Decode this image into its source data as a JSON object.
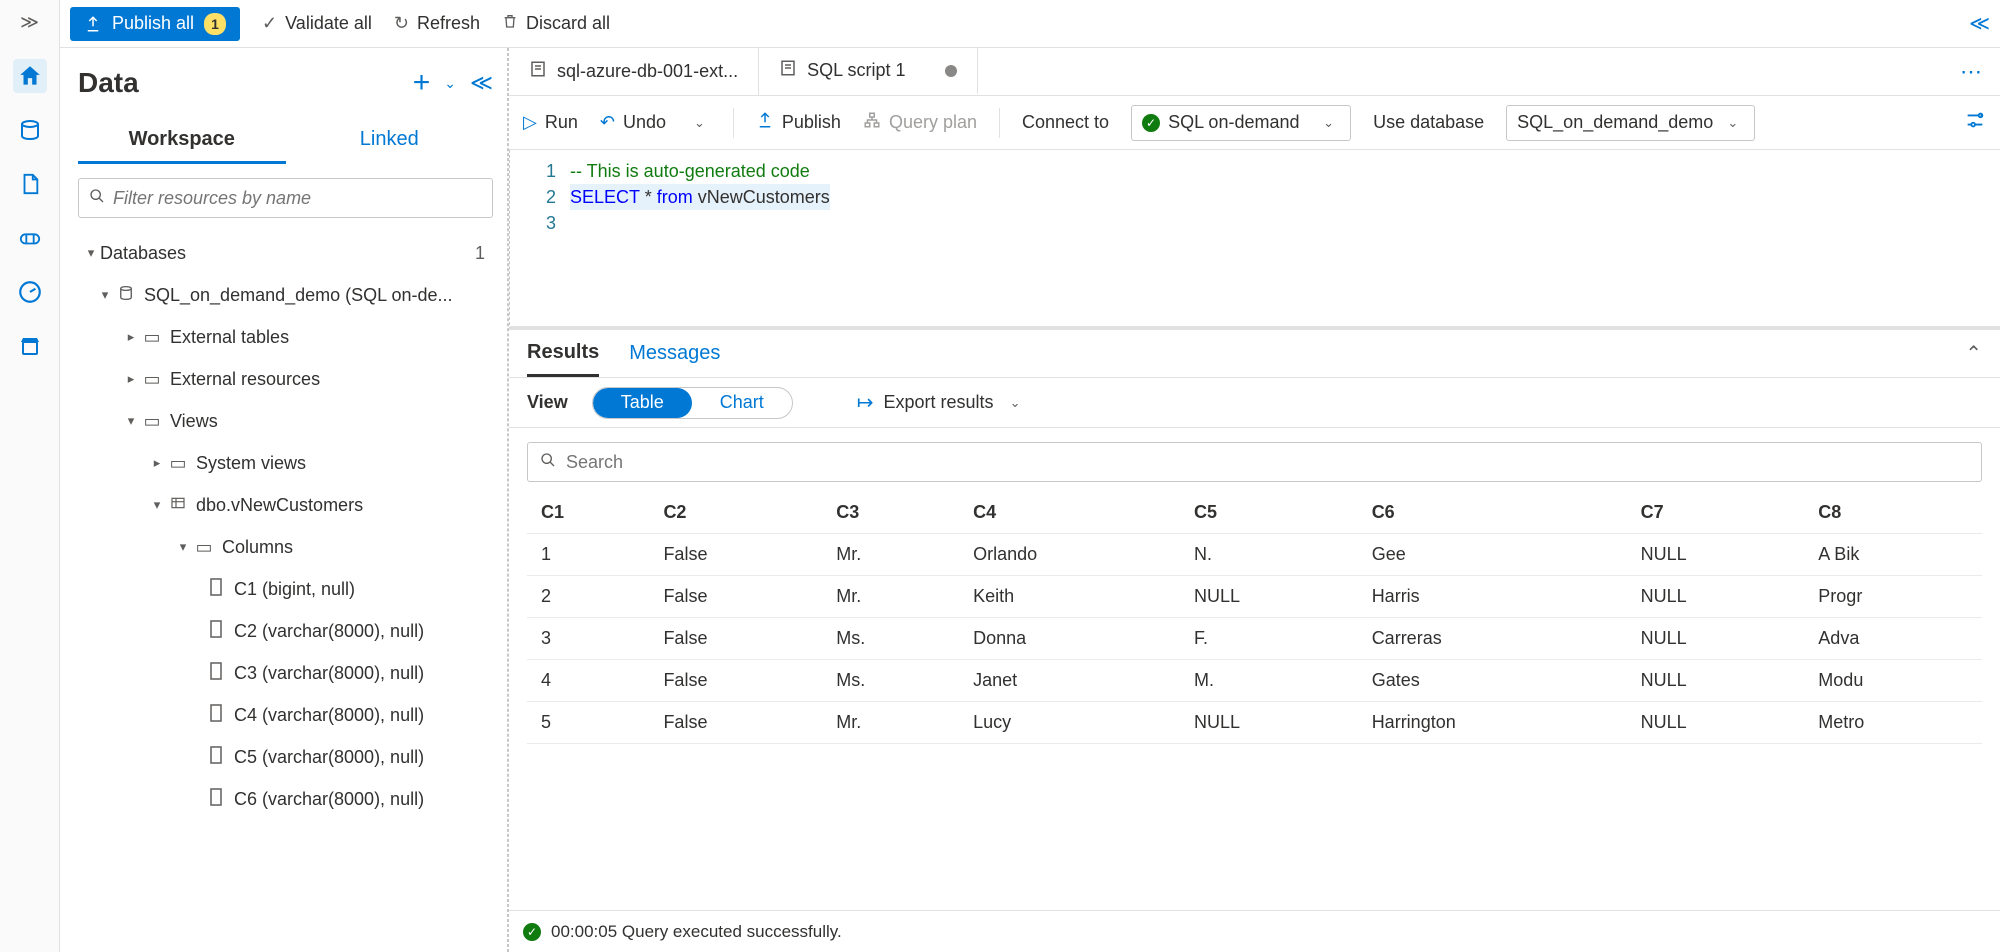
{
  "toolbar": {
    "publish_all": "Publish all",
    "publish_count": "1",
    "validate_all": "Validate all",
    "refresh": "Refresh",
    "discard_all": "Discard all"
  },
  "data_panel": {
    "title": "Data",
    "tabs": {
      "workspace": "Workspace",
      "linked": "Linked"
    },
    "filter_placeholder": "Filter resources by name",
    "databases_label": "Databases",
    "databases_count": "1",
    "db_node": "SQL_on_demand_demo (SQL on-de...",
    "ext_tables": "External tables",
    "ext_resources": "External resources",
    "views": "Views",
    "system_views": "System views",
    "view_name": "dbo.vNewCustomers",
    "columns_label": "Columns",
    "columns": [
      "C1 (bigint, null)",
      "C2 (varchar(8000), null)",
      "C3 (varchar(8000), null)",
      "C4 (varchar(8000), null)",
      "C5 (varchar(8000), null)",
      "C6 (varchar(8000), null)"
    ]
  },
  "editor": {
    "tabs": [
      {
        "label": "sql-azure-db-001-ext...",
        "dirty": false
      },
      {
        "label": "SQL script 1",
        "dirty": true
      }
    ],
    "runbar": {
      "run": "Run",
      "undo": "Undo",
      "publish": "Publish",
      "query_plan": "Query plan",
      "connect_to": "Connect to",
      "connection": "SQL on-demand",
      "use_database": "Use database",
      "database": "SQL_on_demand_demo"
    },
    "code": {
      "line1_comment": "-- This is auto-generated code",
      "line2_kw": "SELECT",
      "line2_star": " * ",
      "line2_from": "from",
      "line2_rest": " vNewCustomers"
    }
  },
  "results": {
    "tabs": {
      "results": "Results",
      "messages": "Messages"
    },
    "view_label": "View",
    "toggle": {
      "table": "Table",
      "chart": "Chart"
    },
    "export": "Export results",
    "search_placeholder": "Search",
    "headers": [
      "C1",
      "C2",
      "C3",
      "C4",
      "C5",
      "C6",
      "C7",
      "C8"
    ],
    "rows": [
      [
        "1",
        "False",
        "Mr.",
        "Orlando",
        "N.",
        "Gee",
        "NULL",
        "A Bik"
      ],
      [
        "2",
        "False",
        "Mr.",
        "Keith",
        "NULL",
        "Harris",
        "NULL",
        "Progr"
      ],
      [
        "3",
        "False",
        "Ms.",
        "Donna",
        "F.",
        "Carreras",
        "NULL",
        "Adva"
      ],
      [
        "4",
        "False",
        "Ms.",
        "Janet",
        "M.",
        "Gates",
        "NULL",
        "Modu"
      ],
      [
        "5",
        "False",
        "Mr.",
        "Lucy",
        "NULL",
        "Harrington",
        "NULL",
        "Metro"
      ]
    ]
  },
  "status": {
    "text": "00:00:05 Query executed successfully."
  }
}
